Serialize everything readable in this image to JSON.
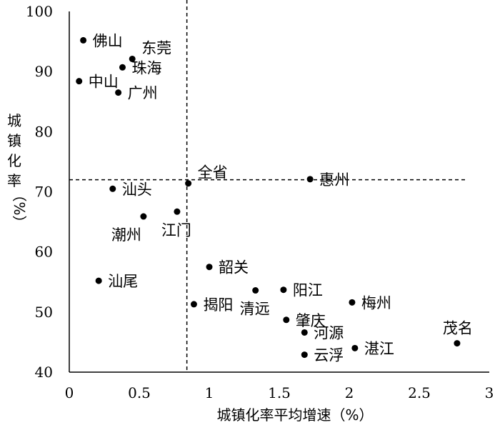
{
  "chart_data": {
    "type": "scatter",
    "title": "",
    "xlabel": "城镇化率平均增速（%）",
    "ylabel_lines": [
      "城",
      "镇",
      "化",
      "率",
      "（%）"
    ],
    "xlim": [
      0,
      3
    ],
    "ylim": [
      40,
      100
    ],
    "xticks": [
      {
        "value": 0,
        "label": "0"
      },
      {
        "value": 0.5,
        "label": "0.5"
      },
      {
        "value": 1,
        "label": "1"
      },
      {
        "value": 1.5,
        "label": "1.5"
      },
      {
        "value": 2,
        "label": "2"
      },
      {
        "value": 2.5,
        "label": "2.5"
      },
      {
        "value": 3,
        "label": "3"
      }
    ],
    "yticks": [
      {
        "value": 40,
        "label": "40"
      },
      {
        "value": 50,
        "label": "50"
      },
      {
        "value": 60,
        "label": "60"
      },
      {
        "value": 70,
        "label": "70"
      },
      {
        "value": 80,
        "label": "80"
      },
      {
        "value": 90,
        "label": "90"
      },
      {
        "value": 100,
        "label": "100"
      }
    ],
    "reference_lines": {
      "x": 0.84,
      "y": 72
    },
    "points": [
      {
        "name": "佛山",
        "x": 0.1,
        "y": 95.2,
        "label_pos": "right"
      },
      {
        "name": "东莞",
        "x": 0.45,
        "y": 92.1,
        "label_pos": "upper-right"
      },
      {
        "name": "珠海",
        "x": 0.38,
        "y": 90.7,
        "label_pos": "right"
      },
      {
        "name": "中山",
        "x": 0.07,
        "y": 88.4,
        "label_pos": "right"
      },
      {
        "name": "广州",
        "x": 0.35,
        "y": 86.5,
        "label_pos": "right"
      },
      {
        "name": "全省",
        "x": 0.85,
        "y": 71.4,
        "label_pos": "upper-right"
      },
      {
        "name": "惠州",
        "x": 1.72,
        "y": 72.1,
        "label_pos": "right"
      },
      {
        "name": "汕头",
        "x": 0.31,
        "y": 70.5,
        "label_pos": "right"
      },
      {
        "name": "潮州",
        "x": 0.53,
        "y": 65.9,
        "label_pos": "below-left"
      },
      {
        "name": "江门",
        "x": 0.77,
        "y": 66.7,
        "label_pos": "below"
      },
      {
        "name": "韶关",
        "x": 1.0,
        "y": 57.5,
        "label_pos": "right"
      },
      {
        "name": "汕尾",
        "x": 0.21,
        "y": 55.2,
        "label_pos": "right"
      },
      {
        "name": "阳江",
        "x": 1.53,
        "y": 53.7,
        "label_pos": "right"
      },
      {
        "name": "清远",
        "x": 1.33,
        "y": 53.6,
        "label_pos": "below"
      },
      {
        "name": "揭阳",
        "x": 0.89,
        "y": 51.3,
        "label_pos": "right"
      },
      {
        "name": "梅州",
        "x": 2.02,
        "y": 51.6,
        "label_pos": "right"
      },
      {
        "name": "肇庆",
        "x": 1.55,
        "y": 48.7,
        "label_pos": "right"
      },
      {
        "name": "河源",
        "x": 1.68,
        "y": 46.6,
        "label_pos": "right"
      },
      {
        "name": "茂名",
        "x": 2.77,
        "y": 44.8,
        "label_pos": "above-left"
      },
      {
        "name": "湛江",
        "x": 2.04,
        "y": 44.0,
        "label_pos": "right"
      },
      {
        "name": "云浮",
        "x": 1.68,
        "y": 42.9,
        "label_pos": "right"
      }
    ]
  }
}
